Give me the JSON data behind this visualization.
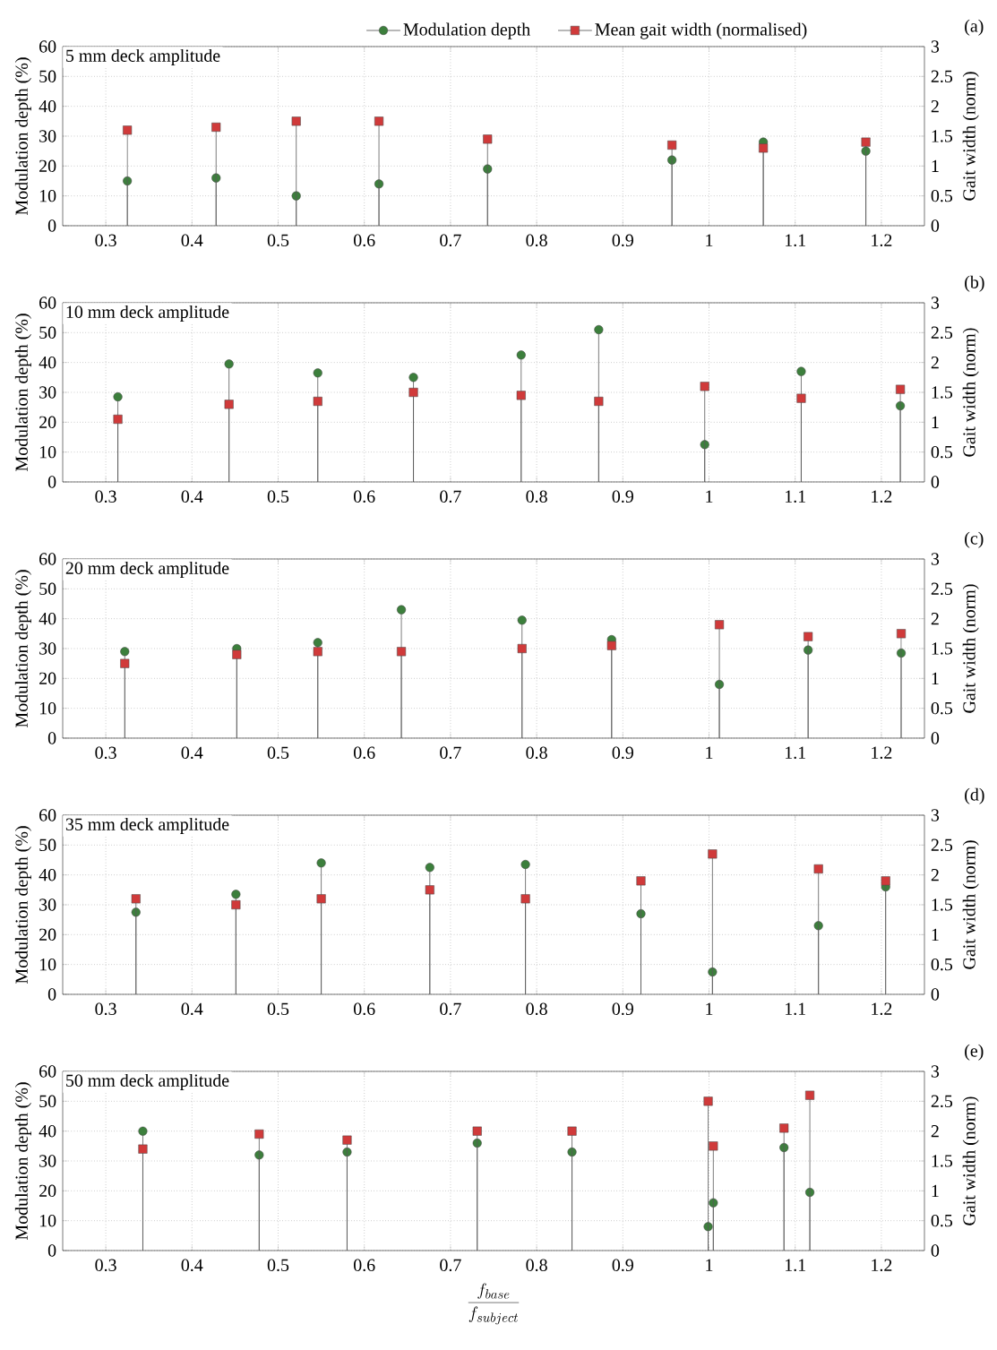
{
  "chart_data": [
    {
      "type": "lollipop",
      "title": "5 mm deck amplitude",
      "ylabel": "Modulation depth (%)",
      "y2label": "Gait width (norm)",
      "annotations": [
        "(a)"
      ],
      "legend": "top",
      "grid": true,
      "x": [
        0.325,
        0.428,
        0.521,
        0.617,
        0.743,
        0.957,
        1.063,
        1.182
      ],
      "xlim": [
        0.25,
        1.25
      ],
      "xticks": [
        0.3,
        0.4,
        0.5,
        0.6,
        0.7,
        0.8,
        0.9,
        1,
        1.1,
        1.2
      ],
      "ylim": [
        0,
        60
      ],
      "yticks": [
        0,
        10,
        20,
        30,
        40,
        50,
        60
      ],
      "y2lim": [
        0,
        3
      ],
      "y2ticks": [
        0,
        0.5,
        1,
        1.5,
        2,
        2.5,
        3
      ],
      "series": [
        {
          "name": "Modulation depth",
          "color": "#3c7f3c",
          "marker": "circle",
          "values": [
            15,
            16,
            10,
            14,
            19,
            22,
            28,
            25
          ]
        },
        {
          "name": "Mean gait width (normalised)",
          "color": "#d03a3a",
          "marker": "square",
          "axis": "y2",
          "values": [
            1.6,
            1.65,
            1.75,
            1.75,
            1.45,
            1.35,
            1.3,
            1.4
          ]
        }
      ]
    },
    {
      "type": "lollipop",
      "title": "10 mm deck amplitude",
      "ylabel": "Modulation depth (%)",
      "y2label": "Gait width (norm)",
      "annotations": [
        "(b)"
      ],
      "grid": true,
      "x": [
        0.314,
        0.443,
        0.546,
        0.657,
        0.782,
        0.872,
        0.995,
        1.107,
        1.222
      ],
      "xlim": [
        0.25,
        1.25
      ],
      "xticks": [
        0.3,
        0.4,
        0.5,
        0.6,
        0.7,
        0.8,
        0.9,
        1,
        1.1,
        1.2
      ],
      "ylim": [
        0,
        60
      ],
      "yticks": [
        0,
        10,
        20,
        30,
        40,
        50,
        60
      ],
      "y2lim": [
        0,
        3
      ],
      "y2ticks": [
        0,
        0.5,
        1,
        1.5,
        2,
        2.5,
        3
      ],
      "series": [
        {
          "color": "#3c7f3c",
          "marker": "circle",
          "values": [
            28.5,
            39.5,
            36.5,
            35,
            42.5,
            51,
            12.5,
            37,
            25.5
          ]
        },
        {
          "color": "#d03a3a",
          "marker": "square",
          "axis": "y2",
          "values": [
            1.05,
            1.3,
            1.35,
            1.5,
            1.45,
            1.35,
            1.6,
            1.4,
            1.55
          ]
        }
      ]
    },
    {
      "type": "lollipop",
      "title": "20 mm deck amplitude",
      "ylabel": "Modulation depth (%)",
      "y2label": "Gait width (norm)",
      "annotations": [
        "(c)"
      ],
      "grid": true,
      "x": [
        0.322,
        0.452,
        0.546,
        0.643,
        0.783,
        0.887,
        1.012,
        1.115,
        1.223
      ],
      "xlim": [
        0.25,
        1.25
      ],
      "xticks": [
        0.3,
        0.4,
        0.5,
        0.6,
        0.7,
        0.8,
        0.9,
        1,
        1.1,
        1.2
      ],
      "ylim": [
        0,
        60
      ],
      "yticks": [
        0,
        10,
        20,
        30,
        40,
        50,
        60
      ],
      "y2lim": [
        0,
        3
      ],
      "y2ticks": [
        0,
        0.5,
        1,
        1.5,
        2,
        2.5,
        3
      ],
      "series": [
        {
          "color": "#3c7f3c",
          "marker": "circle",
          "values": [
            29,
            30,
            32,
            43,
            39.5,
            33,
            18,
            29.5,
            28.5
          ]
        },
        {
          "color": "#d03a3a",
          "marker": "square",
          "axis": "y2",
          "values": [
            1.25,
            1.4,
            1.45,
            1.45,
            1.5,
            1.55,
            1.9,
            1.7,
            1.75
          ]
        }
      ]
    },
    {
      "type": "lollipop",
      "title": "35 mm deck amplitude",
      "ylabel": "Modulation depth (%)",
      "y2label": "Gait width (norm)",
      "annotations": [
        "(d)"
      ],
      "grid": true,
      "x": [
        0.335,
        0.451,
        0.55,
        0.676,
        0.787,
        0.921,
        1.004,
        1.127,
        1.205
      ],
      "xlim": [
        0.25,
        1.25
      ],
      "xticks": [
        0.3,
        0.4,
        0.5,
        0.6,
        0.7,
        0.8,
        0.9,
        1,
        1.1,
        1.2
      ],
      "ylim": [
        0,
        60
      ],
      "yticks": [
        0,
        10,
        20,
        30,
        40,
        50,
        60
      ],
      "y2lim": [
        0,
        3
      ],
      "y2ticks": [
        0,
        0.5,
        1,
        1.5,
        2,
        2.5,
        3
      ],
      "series": [
        {
          "color": "#3c7f3c",
          "marker": "circle",
          "values": [
            27.5,
            33.5,
            44,
            42.5,
            43.5,
            27,
            7.5,
            23,
            36
          ]
        },
        {
          "color": "#d03a3a",
          "marker": "square",
          "axis": "y2",
          "values": [
            1.6,
            1.5,
            1.6,
            1.75,
            1.6,
            1.9,
            2.35,
            2.1,
            1.9
          ]
        }
      ]
    },
    {
      "type": "lollipop",
      "title": "50 mm deck amplitude",
      "ylabel": "Modulation depth (%)",
      "y2label": "Gait width (norm)",
      "xlabel": "\\frac{f_{base}}{f_{subject}}",
      "annotations": [
        "(e)"
      ],
      "grid": true,
      "x": [
        0.343,
        0.478,
        0.58,
        0.731,
        0.841,
        0.999,
        1.005,
        1.087,
        1.117
      ],
      "xlim": [
        0.25,
        1.25
      ],
      "xticks": [
        0.3,
        0.4,
        0.5,
        0.6,
        0.7,
        0.8,
        0.9,
        1,
        1.1,
        1.2
      ],
      "ylim": [
        0,
        60
      ],
      "yticks": [
        0,
        10,
        20,
        30,
        40,
        50,
        60
      ],
      "y2lim": [
        0,
        3
      ],
      "y2ticks": [
        0,
        0.5,
        1,
        1.5,
        2,
        2.5,
        3
      ],
      "series": [
        {
          "color": "#3c7f3c",
          "marker": "circle",
          "values": [
            40,
            32,
            33,
            36,
            33,
            8,
            16,
            34.5,
            19.5
          ]
        },
        {
          "color": "#d03a3a",
          "marker": "square",
          "axis": "y2",
          "values": [
            1.7,
            1.95,
            1.85,
            2.0,
            2.0,
            2.5,
            1.75,
            2.05,
            2.6
          ]
        }
      ]
    }
  ]
}
